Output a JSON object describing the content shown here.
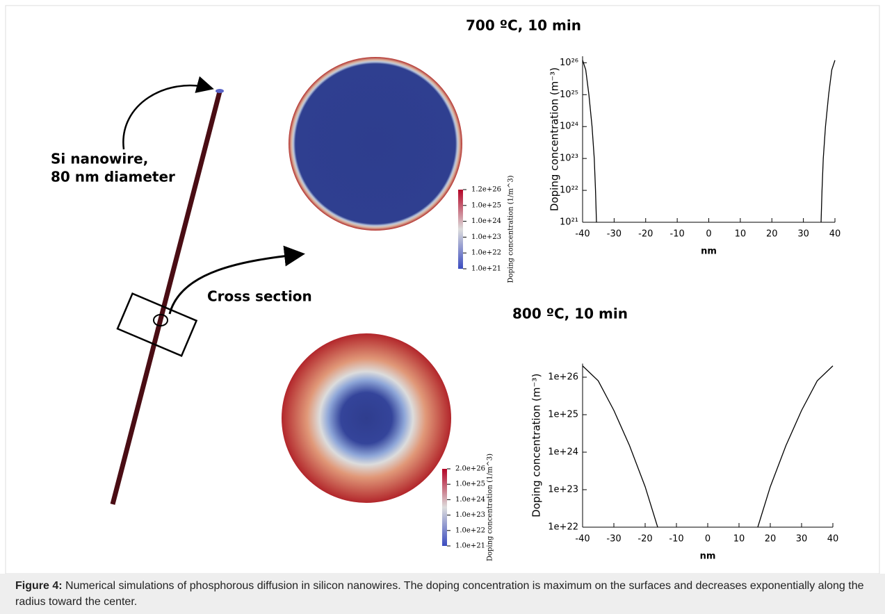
{
  "figure": {
    "nanowire_label_1": "Si nanowire,",
    "nanowire_label_2": "80 nm diameter",
    "cross_section_label": "Cross section"
  },
  "chart_data": [
    {
      "type": "line",
      "title": "700 ºC, 10 min",
      "xlabel": "nm",
      "ylabel": "Doping concentration (m⁻³)",
      "x": [
        -40,
        -39,
        -38,
        -37,
        -36.3,
        -35.9,
        -35.6,
        0,
        35.6,
        35.9,
        36.3,
        37,
        38,
        39,
        40
      ],
      "values": [
        1.2e+26,
        6e+25,
        1e+25,
        1e+24,
        1e+23,
        1e+22,
        1e+21,
        null,
        1e+21,
        1e+22,
        1e+23,
        1e+24,
        1e+25,
        6e+25,
        1.2e+26
      ],
      "color": "#000000",
      "log_y": true,
      "xlim": [
        -40,
        40
      ],
      "ylim": [
        1e+21,
        1.6e+26
      ],
      "xticks": [
        -40,
        -30,
        -20,
        -10,
        0,
        10,
        20,
        30,
        40
      ],
      "yticks": [
        {
          "value": 1e+21,
          "label": "10²¹"
        },
        {
          "value": 1e+22,
          "label": "10²²"
        },
        {
          "value": 1e+23,
          "label": "10²³"
        },
        {
          "value": 1e+24,
          "label": "10²⁴"
        },
        {
          "value": 1e+25,
          "label": "10²⁵"
        },
        {
          "value": 1e+26,
          "label": "10²⁶"
        }
      ]
    },
    {
      "type": "line",
      "title": "800 ºC, 10 min",
      "xlabel": "nm",
      "ylabel": "Doping concentration (m⁻³)",
      "x": [
        -40,
        -35,
        -30,
        -25,
        -20,
        -16,
        0,
        16,
        20,
        25,
        30,
        35,
        40
      ],
      "values": [
        2e+26,
        8e+25,
        1.3e+25,
        1.5e+24,
        1.2e+23,
        1e+22,
        null,
        1e+22,
        1.2e+23,
        1.5e+24,
        1.3e+25,
        8e+25,
        2e+26
      ],
      "color": "#000000",
      "log_y": true,
      "xlim": [
        -40,
        40
      ],
      "ylim": [
        1e+22,
        2.3e+26
      ],
      "xticks": [
        -40,
        -30,
        -20,
        -10,
        0,
        10,
        20,
        30,
        40
      ],
      "yticks": [
        {
          "value": 1e+22,
          "label": "1e+22"
        },
        {
          "value": 1e+23,
          "label": "1e+23"
        },
        {
          "value": 1e+24,
          "label": "1e+24"
        },
        {
          "value": 1e+25,
          "label": "1e+25"
        },
        {
          "value": 1e+26,
          "label": "1e+26"
        }
      ]
    }
  ],
  "colorbars": [
    {
      "title": "Doping concentration (1/m^3)",
      "labels": [
        "1.2e+26",
        "1.0e+25",
        "1.0e+24",
        "1.0e+23",
        "1.0e+22",
        "1.0e+21"
      ]
    },
    {
      "title": "Doping concentration (1/m^3)",
      "labels": [
        "2.0e+26",
        "1.0e+25",
        "1.0e+24",
        "1.0e+23",
        "1.0e+22",
        "1.0e+21"
      ]
    }
  ],
  "caption": {
    "label": "Figure 4:",
    "text": "Numerical simulations of phosphorous diffusion in silicon nanowires. The doping concentration is maximum on the surfaces and decreases exponentially along the radius toward the center."
  }
}
